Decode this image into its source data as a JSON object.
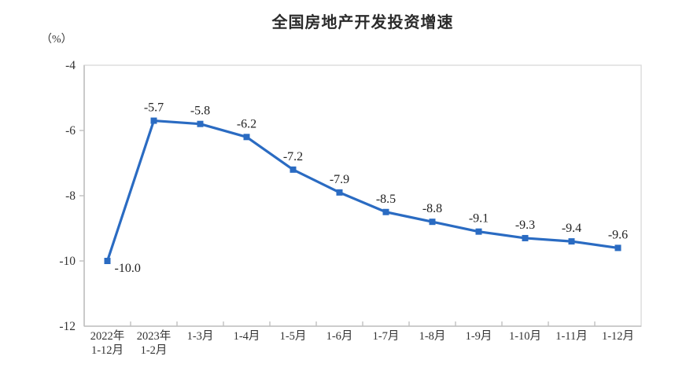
{
  "chart_data": {
    "type": "line",
    "title": "全国房地产开发投资增速",
    "unit_label": "（%）",
    "categories": [
      "2022年\n1-12月",
      "2023年\n1-2月",
      "1-3月",
      "1-4月",
      "1-5月",
      "1-6月",
      "1-7月",
      "1-8月",
      "1-9月",
      "1-10月",
      "1-11月",
      "1-12月"
    ],
    "values": [
      -10.0,
      -5.7,
      -5.8,
      -6.2,
      -7.2,
      -7.9,
      -8.5,
      -8.8,
      -9.1,
      -9.3,
      -9.4,
      -9.6
    ],
    "data_labels": [
      "-10.0",
      "-5.7",
      "-5.8",
      "-6.2",
      "-7.2",
      "-7.9",
      "-8.5",
      "-8.8",
      "-9.1",
      "-9.3",
      "-9.4",
      "-9.6"
    ],
    "ylim": [
      -12,
      -4
    ],
    "yticks": [
      -4,
      -6,
      -8,
      -10,
      -12
    ],
    "grid": false,
    "legend": "none",
    "marker": "square",
    "colors": {
      "line": "#2A6BC2",
      "text": "#333333",
      "axis": "#C0C0C0",
      "border": "#DCDCDC"
    }
  }
}
